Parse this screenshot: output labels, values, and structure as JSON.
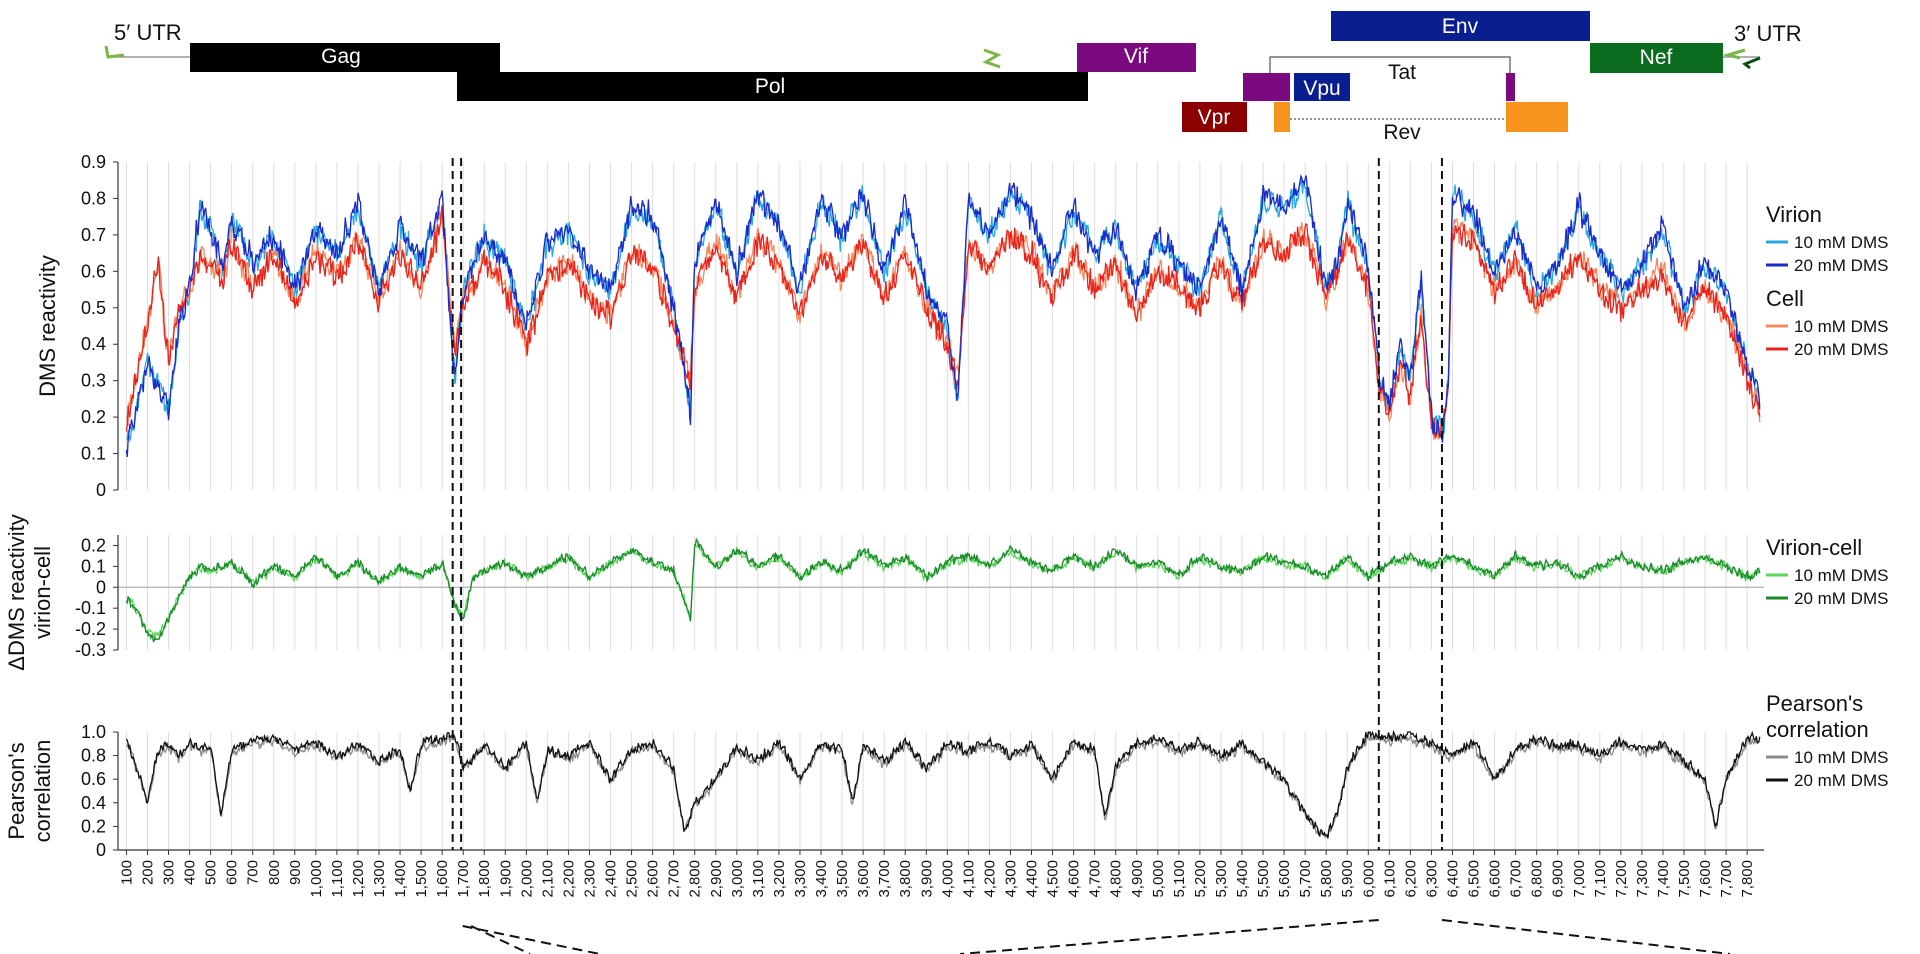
{
  "genome_map": {
    "utr5_label": "5′ UTR",
    "utr3_label": "3′ UTR",
    "genes": [
      {
        "name": "Gag",
        "start": 790,
        "end": 2292,
        "color": "#000000"
      },
      {
        "name": "Pol",
        "start": 2085,
        "end": 5096,
        "color": "#000000"
      },
      {
        "name": "Vif",
        "start": 5041,
        "end": 5619,
        "color": "#7b0a80"
      },
      {
        "name": "Vpr",
        "start": 5559,
        "end": 5850,
        "color": "#8b0000"
      },
      {
        "name": "Vpu",
        "start": 6062,
        "end": 6310,
        "color": "#0a1f8f"
      },
      {
        "name": "Env",
        "start": 6225,
        "end": 8795,
        "color": "#0a1f8f"
      },
      {
        "name": "Nef",
        "start": 8797,
        "end": 9417,
        "color": "#0b6b1e"
      }
    ],
    "tat_label": "Tat",
    "rev_label": "Rev",
    "tat_color": "#7b0a80",
    "rev_color": "#f7941d"
  },
  "chart_data": [
    {
      "type": "line",
      "name": "reactivity",
      "ylabel": "DMS reactivity",
      "ylim": [
        0,
        0.9
      ],
      "yticks": [
        "0",
        "0.1",
        "0.2",
        "0.3",
        "0.4",
        "0.5",
        "0.6",
        "0.7",
        "0.8",
        "0.9"
      ],
      "legend_groups": [
        {
          "title": "Virion",
          "items": [
            {
              "label": "10 mM DMS",
              "color": "#29a8e0"
            },
            {
              "label": "20 mM DMS",
              "color": "#1a2bc9"
            }
          ]
        },
        {
          "title": "Cell",
          "items": [
            {
              "label": "10 mM DMS",
              "color": "#f4895f"
            },
            {
              "label": "20 mM DMS",
              "color": "#e8231d"
            }
          ]
        }
      ],
      "series": [
        {
          "name": "Virion 20 mM DMS",
          "color": "#1a2bc9",
          "x": [
            100,
            200,
            250,
            300,
            350,
            400,
            450,
            500,
            560,
            600,
            700,
            800,
            900,
            1000,
            1100,
            1200,
            1300,
            1400,
            1500,
            1600,
            1660,
            1700,
            1800,
            1900,
            2000,
            2100,
            2200,
            2300,
            2400,
            2500,
            2600,
            2700,
            2780,
            2800,
            2900,
            3000,
            3100,
            3200,
            3300,
            3400,
            3500,
            3600,
            3700,
            3800,
            3900,
            4000,
            4050,
            4100,
            4200,
            4300,
            4400,
            4500,
            4600,
            4700,
            4800,
            4900,
            5000,
            5100,
            5200,
            5300,
            5400,
            5500,
            5600,
            5700,
            5800,
            5850,
            5900,
            6000,
            6050,
            6100,
            6150,
            6200,
            6250,
            6300,
            6350,
            6380,
            6400,
            6500,
            6600,
            6700,
            6800,
            6900,
            7000,
            7100,
            7200,
            7300,
            7400,
            7500,
            7600,
            7700,
            7800,
            7860
          ],
          "values": [
            0.12,
            0.35,
            0.28,
            0.22,
            0.45,
            0.55,
            0.78,
            0.72,
            0.6,
            0.75,
            0.62,
            0.7,
            0.55,
            0.72,
            0.65,
            0.78,
            0.55,
            0.72,
            0.62,
            0.8,
            0.3,
            0.55,
            0.7,
            0.62,
            0.45,
            0.68,
            0.72,
            0.6,
            0.55,
            0.78,
            0.75,
            0.5,
            0.22,
            0.62,
            0.8,
            0.6,
            0.82,
            0.72,
            0.55,
            0.8,
            0.7,
            0.82,
            0.6,
            0.78,
            0.55,
            0.45,
            0.25,
            0.8,
            0.7,
            0.82,
            0.75,
            0.6,
            0.78,
            0.65,
            0.72,
            0.55,
            0.7,
            0.62,
            0.55,
            0.75,
            0.55,
            0.8,
            0.78,
            0.85,
            0.55,
            0.62,
            0.8,
            0.62,
            0.32,
            0.22,
            0.4,
            0.3,
            0.58,
            0.2,
            0.15,
            0.3,
            0.82,
            0.75,
            0.6,
            0.72,
            0.55,
            0.62,
            0.78,
            0.65,
            0.55,
            0.62,
            0.72,
            0.5,
            0.62,
            0.55,
            0.35,
            0.25
          ]
        },
        {
          "name": "Cell 20 mM DMS",
          "color": "#e8231d",
          "x": [
            100,
            200,
            250,
            300,
            350,
            400,
            450,
            500,
            560,
            600,
            700,
            800,
            900,
            1000,
            1100,
            1200,
            1300,
            1400,
            1500,
            1600,
            1660,
            1700,
            1800,
            1900,
            2000,
            2100,
            2200,
            2300,
            2400,
            2500,
            2600,
            2700,
            2780,
            2800,
            2900,
            3000,
            3100,
            3200,
            3300,
            3400,
            3500,
            3600,
            3700,
            3800,
            3900,
            4000,
            4050,
            4100,
            4200,
            4300,
            4400,
            4500,
            4600,
            4700,
            4800,
            4900,
            5000,
            5100,
            5200,
            5300,
            5400,
            5500,
            5600,
            5700,
            5800,
            5850,
            5900,
            6000,
            6050,
            6100,
            6150,
            6200,
            6250,
            6300,
            6350,
            6380,
            6400,
            6500,
            6600,
            6700,
            6800,
            6900,
            7000,
            7100,
            7200,
            7300,
            7400,
            7500,
            7600,
            7700,
            7800,
            7860
          ],
          "values": [
            0.18,
            0.45,
            0.62,
            0.35,
            0.5,
            0.55,
            0.65,
            0.62,
            0.58,
            0.68,
            0.55,
            0.65,
            0.5,
            0.65,
            0.58,
            0.68,
            0.52,
            0.65,
            0.55,
            0.75,
            0.38,
            0.52,
            0.62,
            0.55,
            0.4,
            0.58,
            0.62,
            0.52,
            0.48,
            0.65,
            0.62,
            0.45,
            0.3,
            0.55,
            0.68,
            0.52,
            0.68,
            0.62,
            0.48,
            0.65,
            0.58,
            0.68,
            0.52,
            0.65,
            0.5,
            0.4,
            0.3,
            0.68,
            0.6,
            0.7,
            0.65,
            0.52,
            0.65,
            0.55,
            0.62,
            0.48,
            0.6,
            0.55,
            0.5,
            0.62,
            0.5,
            0.68,
            0.65,
            0.7,
            0.52,
            0.58,
            0.7,
            0.55,
            0.3,
            0.2,
            0.35,
            0.25,
            0.48,
            0.18,
            0.15,
            0.28,
            0.72,
            0.68,
            0.55,
            0.62,
            0.5,
            0.55,
            0.65,
            0.55,
            0.5,
            0.55,
            0.6,
            0.45,
            0.55,
            0.48,
            0.32,
            0.2
          ]
        }
      ]
    },
    {
      "type": "line",
      "name": "delta",
      "ylabel_line1": "ΔDMS reactivity",
      "ylabel_line2": "virion-cell",
      "ylim": [
        -0.3,
        0.25
      ],
      "yticks": [
        {
          "v": 0.2,
          "t": "0.2"
        },
        {
          "v": 0.1,
          "t": "0.1"
        },
        {
          "v": 0,
          "t": "0"
        },
        {
          "v": -0.1,
          "t": "-0.1"
        },
        {
          "v": -0.2,
          "t": "-0.2"
        },
        {
          "v": -0.3,
          "t": "-0.3"
        }
      ],
      "legend_groups": [
        {
          "title": "Virion-cell",
          "items": [
            {
              "label": "10 mM DMS",
              "color": "#5fd35f"
            },
            {
              "label": "20 mM DMS",
              "color": "#1a8a2a"
            }
          ]
        }
      ],
      "series": [
        {
          "name": "Virion-cell 20 mM DMS",
          "color": "#1a8a2a",
          "x": [
            100,
            150,
            200,
            250,
            300,
            350,
            400,
            450,
            500,
            600,
            700,
            800,
            900,
            1000,
            1100,
            1200,
            1300,
            1400,
            1500,
            1600,
            1660,
            1700,
            1750,
            1800,
            1900,
            2000,
            2100,
            2200,
            2300,
            2400,
            2500,
            2600,
            2700,
            2780,
            2800,
            2900,
            3000,
            3100,
            3200,
            3300,
            3400,
            3500,
            3600,
            3700,
            3800,
            3900,
            4000,
            4100,
            4200,
            4300,
            4400,
            4500,
            4600,
            4700,
            4800,
            4900,
            5000,
            5100,
            5200,
            5300,
            5400,
            5500,
            5600,
            5700,
            5800,
            5900,
            6000,
            6100,
            6200,
            6300,
            6400,
            6500,
            6600,
            6700,
            6800,
            6900,
            7000,
            7100,
            7200,
            7300,
            7400,
            7500,
            7600,
            7700,
            7800,
            7860
          ],
          "values": [
            -0.05,
            -0.12,
            -0.22,
            -0.25,
            -0.15,
            -0.05,
            0.05,
            0.1,
            0.08,
            0.12,
            0.02,
            0.1,
            0.05,
            0.15,
            0.05,
            0.12,
            0.02,
            0.1,
            0.05,
            0.12,
            -0.08,
            -0.15,
            0.05,
            0.08,
            0.12,
            0.05,
            0.1,
            0.15,
            0.05,
            0.12,
            0.18,
            0.12,
            0.08,
            -0.15,
            0.22,
            0.1,
            0.18,
            0.1,
            0.15,
            0.05,
            0.12,
            0.08,
            0.18,
            0.1,
            0.15,
            0.05,
            0.12,
            0.15,
            0.1,
            0.18,
            0.12,
            0.08,
            0.15,
            0.1,
            0.18,
            0.1,
            0.12,
            0.05,
            0.15,
            0.1,
            0.08,
            0.15,
            0.12,
            0.1,
            0.05,
            0.15,
            0.05,
            0.12,
            0.15,
            0.1,
            0.15,
            0.1,
            0.05,
            0.15,
            0.1,
            0.12,
            0.05,
            0.1,
            0.15,
            0.1,
            0.08,
            0.12,
            0.15,
            0.1,
            0.05,
            0.08
          ]
        }
      ]
    },
    {
      "type": "line",
      "name": "pearson",
      "ylabel_line1": "Pearson's",
      "ylabel_line2": "correlation",
      "ylim": [
        0,
        1.0
      ],
      "yticks": [
        {
          "v": 1.0,
          "t": "1.0"
        },
        {
          "v": 0.8,
          "t": "0.8"
        },
        {
          "v": 0.6,
          "t": "0.6"
        },
        {
          "v": 0.4,
          "t": "0.4"
        },
        {
          "v": 0.2,
          "t": "0.2"
        },
        {
          "v": 0,
          "t": "0"
        }
      ],
      "legend_groups": [
        {
          "title": "Pearson's",
          "title2": "correlation",
          "items": [
            {
              "label": "10 mM DMS",
              "color": "#8c8c8c"
            },
            {
              "label": "20 mM DMS",
              "color": "#111111"
            }
          ]
        }
      ],
      "series": [
        {
          "name": "Pearson 20 mM DMS",
          "color": "#111111",
          "x": [
            100,
            150,
            200,
            250,
            300,
            350,
            400,
            450,
            500,
            550,
            600,
            700,
            800,
            900,
            1000,
            1100,
            1200,
            1300,
            1400,
            1450,
            1500,
            1600,
            1660,
            1700,
            1800,
            1900,
            2000,
            2050,
            2100,
            2200,
            2300,
            2400,
            2500,
            2600,
            2700,
            2750,
            2800,
            2900,
            3000,
            3100,
            3200,
            3300,
            3400,
            3500,
            3550,
            3600,
            3700,
            3800,
            3900,
            4000,
            4100,
            4200,
            4300,
            4400,
            4500,
            4600,
            4700,
            4750,
            4800,
            4900,
            5000,
            5100,
            5200,
            5300,
            5400,
            5500,
            5600,
            5700,
            5750,
            5800,
            5850,
            5900,
            6000,
            6100,
            6200,
            6300,
            6400,
            6500,
            6600,
            6700,
            6800,
            6900,
            7000,
            7100,
            7200,
            7300,
            7400,
            7500,
            7600,
            7650,
            7700,
            7800,
            7860
          ],
          "values": [
            0.95,
            0.7,
            0.4,
            0.85,
            0.9,
            0.8,
            0.92,
            0.85,
            0.88,
            0.3,
            0.85,
            0.92,
            0.95,
            0.85,
            0.92,
            0.8,
            0.9,
            0.75,
            0.85,
            0.5,
            0.9,
            0.95,
            0.98,
            0.7,
            0.9,
            0.7,
            0.92,
            0.4,
            0.85,
            0.8,
            0.92,
            0.6,
            0.85,
            0.9,
            0.7,
            0.15,
            0.4,
            0.6,
            0.88,
            0.75,
            0.92,
            0.6,
            0.9,
            0.85,
            0.4,
            0.9,
            0.75,
            0.92,
            0.7,
            0.9,
            0.85,
            0.92,
            0.8,
            0.9,
            0.6,
            0.92,
            0.85,
            0.25,
            0.7,
            0.9,
            0.95,
            0.85,
            0.92,
            0.8,
            0.9,
            0.75,
            0.6,
            0.3,
            0.2,
            0.1,
            0.3,
            0.7,
            0.98,
            0.95,
            0.98,
            0.9,
            0.8,
            0.92,
            0.6,
            0.85,
            0.95,
            0.88,
            0.9,
            0.8,
            0.92,
            0.85,
            0.9,
            0.75,
            0.6,
            0.2,
            0.6,
            0.95,
            0.95
          ]
        }
      ]
    }
  ],
  "x_axis": {
    "ticks": [
      "100",
      "200",
      "300",
      "400",
      "500",
      "600",
      "700",
      "800",
      "900",
      "1,000",
      "1,100",
      "1,200",
      "1,300",
      "1,400",
      "1,500",
      "1,600",
      "1,700",
      "1,800",
      "1,900",
      "2,000",
      "2,100",
      "2,200",
      "2,300",
      "2,400",
      "2,500",
      "2,600",
      "2,700",
      "2,800",
      "2,900",
      "3,000",
      "3,100",
      "3,200",
      "3,300",
      "3,400",
      "3,500",
      "3,600",
      "3,700",
      "3,800",
      "3,900",
      "4,000",
      "4,100",
      "4,200",
      "4,300",
      "4,400",
      "4,500",
      "4,600",
      "4,700",
      "4,800",
      "4,900",
      "5,000",
      "5,100",
      "5,200",
      "5,300",
      "5,400",
      "5,500",
      "5,600",
      "5,700",
      "5,800",
      "5,900",
      "6,000",
      "6,100",
      "6,200",
      "6,300",
      "6,400",
      "6,500",
      "6,600",
      "6,700",
      "6,800",
      "6,900",
      "7,000",
      "7,100",
      "7,200",
      "7,300",
      "7,400",
      "7,500",
      "7,600",
      "7,700",
      "7,800"
    ],
    "range": [
      60,
      7880
    ],
    "dashed_markers": [
      1650,
      1690,
      6050,
      6350
    ]
  }
}
